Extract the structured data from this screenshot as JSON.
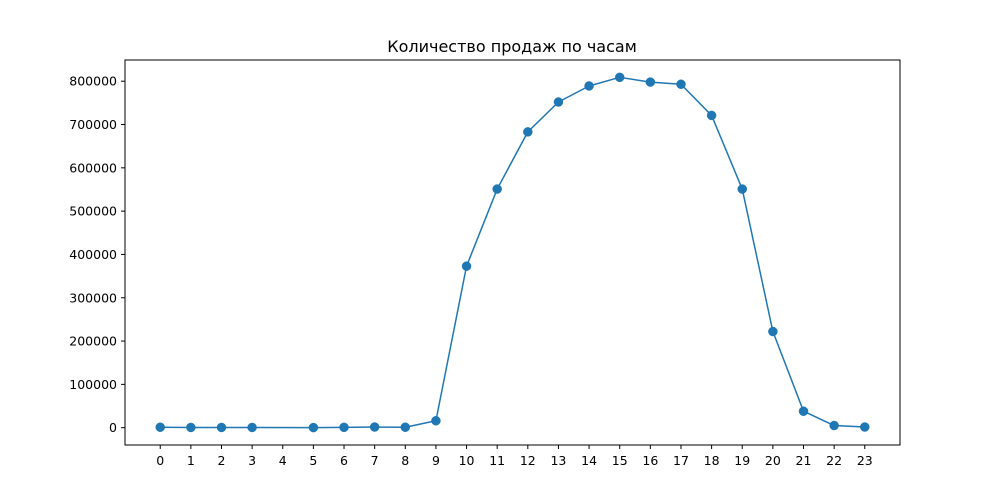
{
  "chart_data": {
    "type": "line",
    "title": "Количество продаж по часам",
    "xlabel": "",
    "ylabel": "",
    "x": [
      0,
      1,
      2,
      3,
      5,
      6,
      7,
      8,
      9,
      10,
      11,
      12,
      13,
      14,
      15,
      16,
      17,
      18,
      19,
      20,
      21,
      22,
      23
    ],
    "series": [
      {
        "name": "",
        "color": "#1f77b4",
        "marker": "circle",
        "values": [
          1000,
          500,
          500,
          500,
          200,
          800,
          1500,
          1000,
          16000,
          373000,
          551000,
          683000,
          752000,
          789000,
          809000,
          798000,
          793000,
          721000,
          551000,
          222000,
          38000,
          5000,
          1500
        ]
      }
    ],
    "xticks": [
      "0",
      "1",
      "2",
      "3",
      "4",
      "5",
      "6",
      "7",
      "8",
      "9",
      "10",
      "11",
      "12",
      "13",
      "14",
      "15",
      "16",
      "17",
      "18",
      "19",
      "20",
      "21",
      "22",
      "23"
    ],
    "xlim": [
      -1.15,
      24.15
    ],
    "yticks": [
      "0",
      "100000",
      "200000",
      "300000",
      "400000",
      "500000",
      "600000",
      "700000",
      "800000"
    ],
    "ylim": [
      -40000,
      849000
    ],
    "grid": false,
    "legend": "none"
  }
}
